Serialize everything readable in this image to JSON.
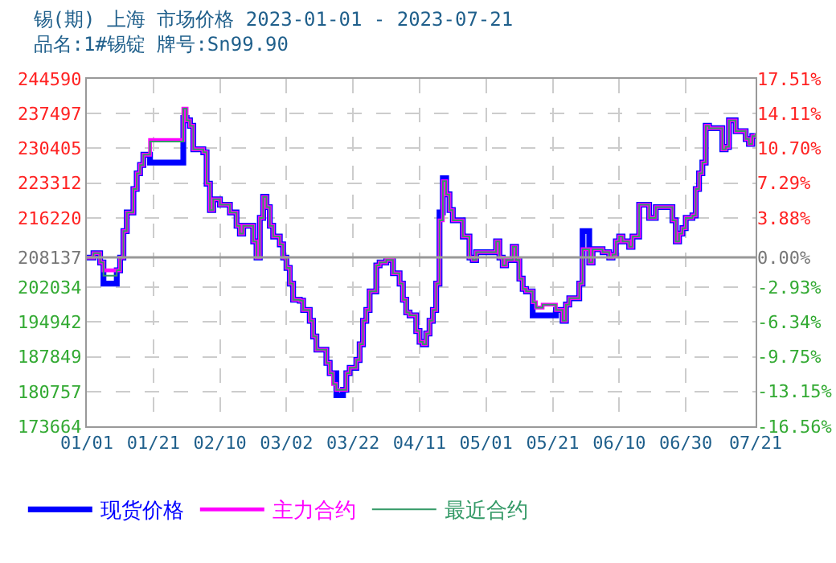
{
  "chart_data": {
    "type": "step",
    "title": "锡(期) 上海 市场价格 2023-01-01 - 2023-07-21",
    "subtitle": "品名:1#锡锭 牌号:Sn99.90",
    "x": [
      "2023-01-01",
      "2023-01-03",
      "2023-01-05",
      "2023-01-06",
      "2023-01-08",
      "2023-01-10",
      "2023-01-11",
      "2023-01-12",
      "2023-01-13",
      "2023-01-15",
      "2023-01-16",
      "2023-01-17",
      "2023-01-18",
      "2023-01-20",
      "2023-01-29",
      "2023-01-30",
      "2023-01-31",
      "2023-02-01",
      "2023-02-02",
      "2023-02-05",
      "2023-02-06",
      "2023-02-07",
      "2023-02-08",
      "2023-02-10",
      "2023-02-13",
      "2023-02-15",
      "2023-02-16",
      "2023-02-17",
      "2023-02-19",
      "2023-02-20",
      "2023-02-21",
      "2023-02-22",
      "2023-02-23",
      "2023-02-24",
      "2023-02-25",
      "2023-02-26",
      "2023-02-27",
      "2023-02-28",
      "2023-03-01",
      "2023-03-02",
      "2023-03-03",
      "2023-03-04",
      "2023-03-06",
      "2023-03-07",
      "2023-03-09",
      "2023-03-10",
      "2023-03-11",
      "2023-03-12",
      "2023-03-14",
      "2023-03-15",
      "2023-03-16",
      "2023-03-17",
      "2023-03-19",
      "2023-03-20",
      "2023-03-21",
      "2023-03-23",
      "2023-03-24",
      "2023-03-25",
      "2023-03-26",
      "2023-03-27",
      "2023-03-29",
      "2023-03-30",
      "2023-04-01",
      "2023-04-02",
      "2023-04-03",
      "2023-04-05",
      "2023-04-06",
      "2023-04-07",
      "2023-04-08",
      "2023-04-10",
      "2023-04-11",
      "2023-04-12",
      "2023-04-13",
      "2023-04-14",
      "2023-04-15",
      "2023-04-16",
      "2023-04-17",
      "2023-04-18",
      "2023-04-19",
      "2023-04-20",
      "2023-04-21",
      "2023-04-23",
      "2023-04-24",
      "2023-04-26",
      "2023-04-27",
      "2023-04-28",
      "2023-05-02",
      "2023-05-04",
      "2023-05-05",
      "2023-05-06",
      "2023-05-07",
      "2023-05-09",
      "2023-05-10",
      "2023-05-11",
      "2023-05-12",
      "2023-05-13",
      "2023-05-15",
      "2023-05-16",
      "2023-05-18",
      "2023-05-21",
      "2023-05-22",
      "2023-05-24",
      "2023-05-25",
      "2023-05-26",
      "2023-05-28",
      "2023-05-29",
      "2023-05-30",
      "2023-06-01",
      "2023-06-02",
      "2023-06-04",
      "2023-06-05",
      "2023-06-07",
      "2023-06-08",
      "2023-06-09",
      "2023-06-10",
      "2023-06-11",
      "2023-06-13",
      "2023-06-14",
      "2023-06-16",
      "2023-06-18",
      "2023-06-19",
      "2023-06-21",
      "2023-06-25",
      "2023-06-26",
      "2023-06-27",
      "2023-06-28",
      "2023-06-29",
      "2023-06-30",
      "2023-07-02",
      "2023-07-03",
      "2023-07-04",
      "2023-07-05",
      "2023-07-06",
      "2023-07-07",
      "2023-07-09",
      "2023-07-11",
      "2023-07-12",
      "2023-07-13",
      "2023-07-15",
      "2023-07-16",
      "2023-07-18",
      "2023-07-19",
      "2023-07-20",
      "2023-07-21"
    ],
    "series": [
      {
        "name": "现货价格",
        "color": "#0000ff",
        "values": [
          208100,
          209000,
          207100,
          202800,
          202800,
          205500,
          208100,
          213500,
          217300,
          222100,
          225300,
          227000,
          229100,
          227500,
          227500,
          236600,
          236100,
          235000,
          230200,
          229600,
          223200,
          217800,
          220000,
          218900,
          217300,
          214600,
          213000,
          214600,
          214600,
          211400,
          208100,
          216200,
          220500,
          218400,
          214600,
          212400,
          212400,
          210800,
          208100,
          206000,
          202800,
          199500,
          199300,
          197400,
          195200,
          192000,
          189300,
          189300,
          186600,
          184500,
          184500,
          180000,
          181100,
          184500,
          185600,
          187200,
          190400,
          195200,
          197400,
          201200,
          206500,
          207100,
          207600,
          207600,
          204900,
          202800,
          199500,
          196900,
          196300,
          193100,
          190900,
          190400,
          192600,
          195200,
          197400,
          202800,
          217300,
          224300,
          221000,
          217800,
          215700,
          215700,
          212400,
          208100,
          207600,
          209200,
          209200,
          211400,
          208100,
          206500,
          207600,
          210300,
          207600,
          203800,
          201700,
          201200,
          196300,
          196300,
          196300,
          196300,
          197400,
          195200,
          198500,
          199800,
          199800,
          202800,
          213500,
          207100,
          209800,
          209800,
          209200,
          208100,
          208700,
          211400,
          212400,
          211400,
          210300,
          212400,
          218900,
          218900,
          216200,
          218400,
          218400,
          215700,
          211400,
          213000,
          214100,
          216200,
          216700,
          222100,
          225300,
          227500,
          235000,
          234500,
          234500,
          230200,
          230700,
          236100,
          233900,
          233900,
          232300,
          231300,
          232900,
          233400
        ]
      },
      {
        "name": "主力合约",
        "color": "#ff00ff",
        "values": [
          208100,
          209000,
          207100,
          205500,
          205500,
          205500,
          208100,
          213500,
          217300,
          222100,
          225300,
          227000,
          229100,
          232100,
          232100,
          238500,
          236100,
          235000,
          230200,
          229600,
          223200,
          217800,
          220000,
          218900,
          217300,
          214600,
          213000,
          214600,
          214600,
          211400,
          208100,
          216200,
          220500,
          218400,
          214600,
          212400,
          212400,
          210800,
          208100,
          206000,
          202800,
          199500,
          199300,
          197400,
          195200,
          192000,
          189300,
          189300,
          186600,
          184500,
          182300,
          181100,
          181100,
          184500,
          185600,
          187200,
          190400,
          195200,
          197400,
          201200,
          206500,
          207100,
          207600,
          207600,
          204900,
          202800,
          199500,
          196900,
          196300,
          193100,
          190900,
          190400,
          192600,
          195200,
          197400,
          202800,
          215700,
          223700,
          221000,
          217800,
          215700,
          215700,
          212400,
          208100,
          207600,
          209200,
          209200,
          211400,
          208100,
          206500,
          207600,
          210300,
          207600,
          203800,
          201700,
          201200,
          199000,
          197900,
          198500,
          198500,
          197400,
          195200,
          198500,
          199800,
          199800,
          202800,
          209800,
          207100,
          209800,
          209800,
          209200,
          208100,
          208700,
          211400,
          212400,
          211400,
          210300,
          212400,
          218900,
          218900,
          216200,
          218400,
          218400,
          215700,
          211400,
          213000,
          214100,
          216200,
          216700,
          222100,
          225300,
          227500,
          235000,
          234500,
          234500,
          230200,
          230700,
          236100,
          233900,
          233900,
          232300,
          231300,
          232900,
          233400
        ]
      },
      {
        "name": "最近合约",
        "color": "#339966",
        "values": [
          208100,
          209000,
          207100,
          204400,
          204400,
          205500,
          208100,
          213500,
          217300,
          222100,
          225300,
          227000,
          229100,
          231800,
          231800,
          238500,
          236100,
          235000,
          230200,
          229600,
          223200,
          217800,
          220000,
          218900,
          217300,
          214600,
          213000,
          214600,
          214600,
          211400,
          208100,
          216200,
          220500,
          218400,
          214600,
          212400,
          212400,
          210800,
          208100,
          206000,
          202800,
          199500,
          199300,
          197400,
          195200,
          192000,
          189300,
          189300,
          186600,
          184500,
          182300,
          181100,
          181100,
          184500,
          185600,
          187200,
          190400,
          195200,
          197400,
          201200,
          206500,
          207100,
          207600,
          207600,
          204900,
          202800,
          199500,
          196900,
          196300,
          193100,
          190900,
          190400,
          192600,
          195200,
          197400,
          202800,
          215700,
          223700,
          221000,
          217800,
          215700,
          215700,
          212400,
          208100,
          207600,
          209200,
          209200,
          211400,
          208100,
          206500,
          207600,
          210300,
          207600,
          203800,
          201700,
          201200,
          199000,
          197900,
          198500,
          198500,
          197400,
          195200,
          198500,
          199800,
          199800,
          202800,
          209800,
          207100,
          209800,
          209800,
          209200,
          208100,
          208700,
          211400,
          212400,
          211400,
          210300,
          212400,
          218900,
          218900,
          216200,
          218400,
          218400,
          215700,
          211400,
          213000,
          214100,
          216200,
          216700,
          222100,
          225300,
          227500,
          235000,
          234500,
          234500,
          230200,
          230700,
          236100,
          233900,
          233900,
          232300,
          231300,
          232900,
          233400
        ]
      }
    ],
    "xlim": [
      "2023-01-01",
      "2023-07-21"
    ],
    "xticks": [
      {
        "value": "2023-01-01",
        "label": "01/01"
      },
      {
        "value": "2023-01-21",
        "label": "01/21"
      },
      {
        "value": "2023-02-10",
        "label": "02/10"
      },
      {
        "value": "2023-03-02",
        "label": "03/02"
      },
      {
        "value": "2023-03-22",
        "label": "03/22"
      },
      {
        "value": "2023-04-11",
        "label": "04/11"
      },
      {
        "value": "2023-05-01",
        "label": "05/01"
      },
      {
        "value": "2023-05-21",
        "label": "05/21"
      },
      {
        "value": "2023-06-10",
        "label": "06/10"
      },
      {
        "value": "2023-06-30",
        "label": "06/30"
      },
      {
        "value": "2023-07-21",
        "label": "07/21"
      }
    ],
    "ylim": [
      173664,
      244590
    ],
    "yticks": [
      173664,
      180757,
      187849,
      194942,
      202034,
      208137,
      216220,
      223312,
      230405,
      237497,
      244590
    ],
    "y2lim": [
      -16.56,
      17.51
    ],
    "y2ticks": [
      {
        "value": -16.56,
        "label": "-16.56%"
      },
      {
        "value": -13.15,
        "label": "-13.15%"
      },
      {
        "value": -9.75,
        "label": "-9.75%"
      },
      {
        "value": -6.34,
        "label": "-6.34%"
      },
      {
        "value": -2.93,
        "label": "-2.93%"
      },
      {
        "value": 0,
        "label": "0.00%"
      },
      {
        "value": 3.88,
        "label": "3.88%"
      },
      {
        "value": 7.29,
        "label": "7.29%"
      },
      {
        "value": 10.7,
        "label": "10.70%"
      },
      {
        "value": 14.11,
        "label": "14.11%"
      },
      {
        "value": 17.51,
        "label": "17.51%"
      }
    ],
    "ref_lines": [
      {
        "axis": "y",
        "value": 208137,
        "color": "#999999"
      }
    ],
    "grid": true,
    "legend": "bottom left",
    "line_style": "solid",
    "marker": "none"
  }
}
